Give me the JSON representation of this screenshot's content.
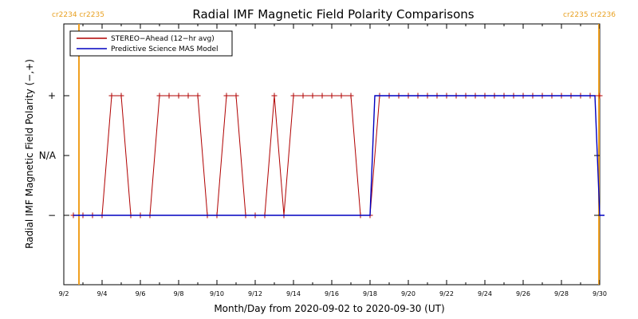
{
  "chart_data": {
    "type": "line",
    "title": "Radial IMF Magnetic Field Polarity Comparisons",
    "xlabel": "Month/Day from 2020-09-02 to 2020-09-30 (UT)",
    "ylabel": "Radial IMF Magnetic Field Polarity (−,+)",
    "x_range": [
      "2020-09-02",
      "2020-09-30"
    ],
    "x_ticks": [
      "9/2",
      "9/4",
      "9/6",
      "9/8",
      "9/10",
      "9/12",
      "9/14",
      "9/16",
      "9/18",
      "9/20",
      "9/22",
      "9/24",
      "9/26",
      "9/28",
      "9/30"
    ],
    "y_ticks": [
      "−",
      "N/A",
      "+"
    ],
    "y_values_legend": "y: -1 = negative polarity, 0 = N/A, 1 = positive polarity",
    "carrington_markers": [
      {
        "date": "2020-09-02T19:00",
        "left_label": "cr2234",
        "right_label": "cr2235",
        "side": "left"
      },
      {
        "date": "2020-09-29T23:00",
        "left_label": "cr2235",
        "right_label": "cr2236",
        "side": "right"
      }
    ],
    "legend_position": "top-left",
    "series": [
      {
        "name": "STEREO−Ahead (12−hr avg)",
        "color": "#b00000",
        "points": [
          [
            "2020-09-02T12:00",
            -1
          ],
          [
            "2020-09-03T00:00",
            -1
          ],
          [
            "2020-09-03T12:00",
            -1
          ],
          [
            "2020-09-04T00:00",
            -1
          ],
          [
            "2020-09-04T12:00",
            1
          ],
          [
            "2020-09-05T00:00",
            1
          ],
          [
            "2020-09-05T12:00",
            -1
          ],
          [
            "2020-09-06T00:00",
            -1
          ],
          [
            "2020-09-06T12:00",
            -1
          ],
          [
            "2020-09-07T00:00",
            1
          ],
          [
            "2020-09-07T12:00",
            1
          ],
          [
            "2020-09-08T00:00",
            1
          ],
          [
            "2020-09-08T12:00",
            1
          ],
          [
            "2020-09-09T00:00",
            1
          ],
          [
            "2020-09-09T12:00",
            -1
          ],
          [
            "2020-09-10T00:00",
            -1
          ],
          [
            "2020-09-10T12:00",
            1
          ],
          [
            "2020-09-11T00:00",
            1
          ],
          [
            "2020-09-11T12:00",
            -1
          ],
          [
            "2020-09-12T00:00",
            -1
          ],
          [
            "2020-09-12T12:00",
            -1
          ],
          [
            "2020-09-13T00:00",
            1
          ],
          [
            "2020-09-13T12:00",
            -1
          ],
          [
            "2020-09-14T00:00",
            1
          ],
          [
            "2020-09-14T12:00",
            1
          ],
          [
            "2020-09-15T00:00",
            1
          ],
          [
            "2020-09-15T12:00",
            1
          ],
          [
            "2020-09-16T00:00",
            1
          ],
          [
            "2020-09-16T12:00",
            1
          ],
          [
            "2020-09-17T00:00",
            1
          ],
          [
            "2020-09-17T12:00",
            -1
          ],
          [
            "2020-09-18T00:00",
            -1
          ],
          [
            "2020-09-18T12:00",
            1
          ],
          [
            "2020-09-19T00:00",
            1
          ],
          [
            "2020-09-19T12:00",
            1
          ],
          [
            "2020-09-20T00:00",
            1
          ],
          [
            "2020-09-20T12:00",
            1
          ],
          [
            "2020-09-21T00:00",
            1
          ],
          [
            "2020-09-21T12:00",
            1
          ],
          [
            "2020-09-22T00:00",
            1
          ],
          [
            "2020-09-22T12:00",
            1
          ],
          [
            "2020-09-23T00:00",
            1
          ],
          [
            "2020-09-23T12:00",
            1
          ],
          [
            "2020-09-24T00:00",
            1
          ],
          [
            "2020-09-24T12:00",
            1
          ],
          [
            "2020-09-25T00:00",
            1
          ],
          [
            "2020-09-25T12:00",
            1
          ],
          [
            "2020-09-26T00:00",
            1
          ],
          [
            "2020-09-26T12:00",
            1
          ],
          [
            "2020-09-27T00:00",
            1
          ],
          [
            "2020-09-27T12:00",
            1
          ],
          [
            "2020-09-28T00:00",
            1
          ],
          [
            "2020-09-28T12:00",
            1
          ],
          [
            "2020-09-29T00:00",
            1
          ],
          [
            "2020-09-29T12:00",
            1
          ],
          [
            "2020-09-30T00:00",
            1
          ]
        ]
      },
      {
        "name": "Predictive Science MAS Model",
        "color": "#0000c0",
        "points": [
          [
            "2020-09-02T12:00",
            -1
          ],
          [
            "2020-09-18T00:00",
            -1
          ],
          [
            "2020-09-18T06:00",
            1
          ],
          [
            "2020-09-29T18:00",
            1
          ],
          [
            "2020-09-30T00:00",
            -1
          ],
          [
            "2020-09-30T06:00",
            -1
          ]
        ]
      }
    ]
  }
}
